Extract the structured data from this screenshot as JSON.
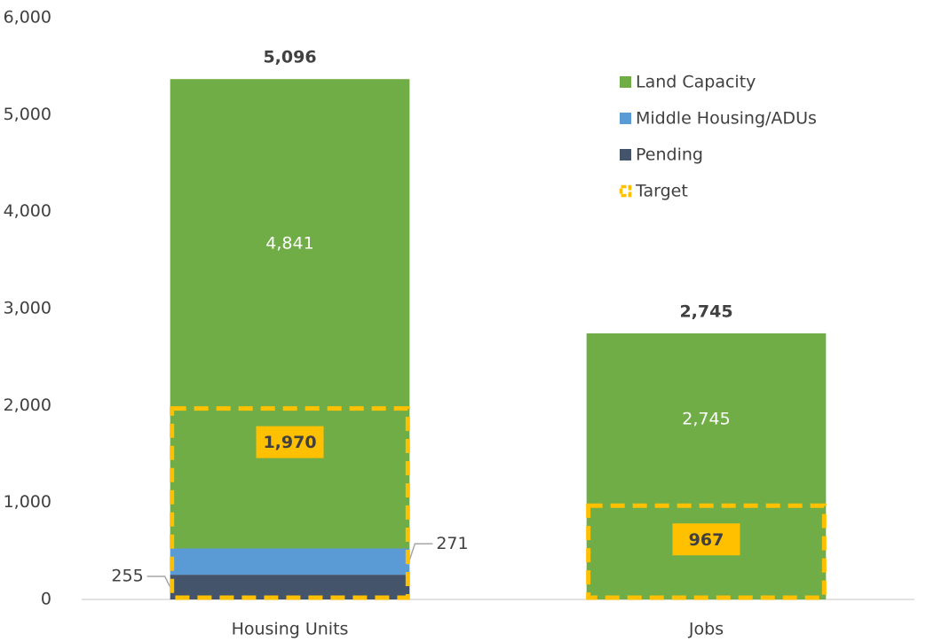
{
  "chart_data": {
    "type": "bar",
    "categories": [
      "Housing Units",
      "Jobs"
    ],
    "series": [
      {
        "name": "Pending",
        "color": "#44546a",
        "values": [
          255,
          null
        ]
      },
      {
        "name": "Middle Housing/ADUs",
        "color": "#5b9bd5",
        "values": [
          271,
          null
        ]
      },
      {
        "name": "Land Capacity",
        "color": "#70ad47",
        "values": [
          4841,
          2745
        ],
        "value_labels": [
          "4,841",
          "2,745"
        ]
      }
    ],
    "target": {
      "name": "Target",
      "color": "#ffc000",
      "values": [
        1970,
        967
      ],
      "value_labels": [
        "1,970",
        "967"
      ]
    },
    "totals": {
      "values": [
        5096,
        2745
      ],
      "value_labels": [
        "5,096",
        "2,745"
      ]
    },
    "ylim": [
      0,
      6000
    ],
    "yticks": [
      0,
      {
        "value": 1000,
        "label": "1,000"
      },
      {
        "value": 2000,
        "label": "2,000"
      },
      {
        "value": 3000,
        "label": "3,000"
      },
      {
        "value": 4000,
        "label": "4,000"
      },
      {
        "value": 5000,
        "label": "5,000"
      },
      {
        "value": 6000,
        "label": "6,000"
      }
    ],
    "legend": "upper right"
  }
}
